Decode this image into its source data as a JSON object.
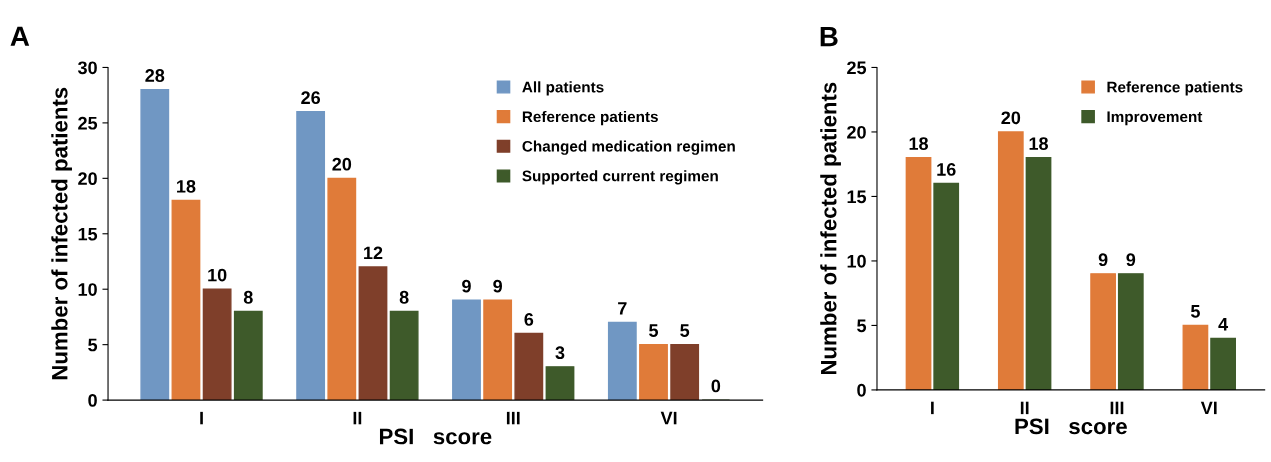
{
  "chart_data": [
    {
      "type": "bar",
      "title": "A",
      "xlabel": "PSI   score",
      "ylabel": "Number of infected patients",
      "categories": [
        "I",
        "II",
        "III",
        "VI"
      ],
      "series": [
        {
          "name": "All patients",
          "color": "#7097c3",
          "values": [
            28,
            26,
            9,
            7
          ]
        },
        {
          "name": "Reference patients",
          "color": "#e07b39",
          "values": [
            18,
            20,
            9,
            5
          ]
        },
        {
          "name": "Changed medication regimen",
          "color": "#7f3f2a",
          "values": [
            10,
            12,
            6,
            5
          ]
        },
        {
          "name": "Supported current regimen",
          "color": "#3e5a2a",
          "values": [
            8,
            8,
            3,
            0
          ]
        }
      ],
      "ylim": [
        0,
        30
      ],
      "yticks": [
        0,
        5,
        10,
        15,
        20,
        25,
        30
      ],
      "data_labels": true,
      "legend": "top right",
      "grid": false
    },
    {
      "type": "bar",
      "title": "B",
      "xlabel": "PSI   score",
      "ylabel": "Number of infected patients",
      "categories": [
        "I",
        "II",
        "III",
        "VI"
      ],
      "series": [
        {
          "name": "Reference patients",
          "color": "#e07b39",
          "values": [
            18,
            20,
            9,
            5
          ]
        },
        {
          "name": "Improvement",
          "color": "#3e5a2a",
          "values": [
            16,
            18,
            9,
            4
          ]
        }
      ],
      "ylim": [
        0,
        25
      ],
      "yticks": [
        0,
        5,
        10,
        15,
        20,
        25
      ],
      "data_labels": true,
      "legend": "top right",
      "grid": false
    }
  ]
}
